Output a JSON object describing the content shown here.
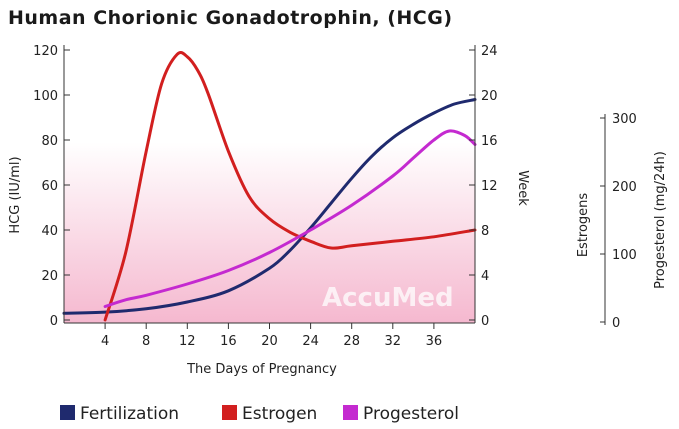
{
  "chart_data": {
    "type": "line",
    "title": "Human Chorionic Gonadotrophin, (HCG)",
    "xlabel": "The Days of Pregnancy",
    "ylabel_left": "HCG (IU/ml)",
    "ylabel_right": "Week",
    "ylabel_far_right_1": "Estrogens",
    "ylabel_far_right_2": "Progesterol (mg/24h)",
    "x_ticks": [
      "4",
      "8",
      "12",
      "16",
      "20",
      "24",
      "28",
      "32",
      "36"
    ],
    "y_left_ticks": [
      "0",
      "20",
      "40",
      "60",
      "80",
      "100",
      "120"
    ],
    "y_right_ticks": [
      "0",
      "4",
      "8",
      "12",
      "16",
      "20",
      "24"
    ],
    "y_far_right_ticks": [
      "0",
      "100",
      "200",
      "300"
    ],
    "xlim": [
      0,
      40
    ],
    "ylim": [
      0,
      120
    ],
    "series": [
      {
        "name": "Fertilization",
        "color": "#1f2a6e",
        "x": [
          0,
          4,
          8,
          12,
          16,
          20,
          22,
          24,
          26,
          28,
          30,
          32,
          34,
          36,
          38,
          40
        ],
        "y": [
          3,
          3.5,
          5,
          8,
          13,
          23,
          31,
          41,
          52,
          63,
          73,
          81,
          87,
          92,
          96,
          98
        ]
      },
      {
        "name": "Estrogen",
        "color": "#d21f1f",
        "x": [
          4,
          6,
          8,
          9.5,
          11,
          12,
          13,
          14,
          16,
          18,
          20,
          22,
          24,
          26,
          28,
          32,
          36,
          40
        ],
        "y": [
          0,
          30,
          75,
          105,
          118,
          117,
          111,
          101,
          75,
          55,
          45,
          39,
          35,
          32,
          33,
          35,
          37,
          40
        ]
      },
      {
        "name": "Progesterol",
        "color": "#c42ad0",
        "x": [
          4,
          6,
          8,
          12,
          16,
          20,
          24,
          28,
          32,
          34,
          36,
          37.5,
          39,
          40
        ],
        "y": [
          6,
          9,
          11,
          16,
          22,
          30,
          40,
          51,
          64,
          72,
          80,
          84,
          82,
          78
        ]
      }
    ]
  },
  "watermark": "AccuMed",
  "legend": [
    {
      "label": "Fertilization",
      "color": "#1f2a6e"
    },
    {
      "label": "Estrogen",
      "color": "#d21f1f"
    },
    {
      "label": "Progesterol",
      "color": "#c42ad0"
    }
  ]
}
